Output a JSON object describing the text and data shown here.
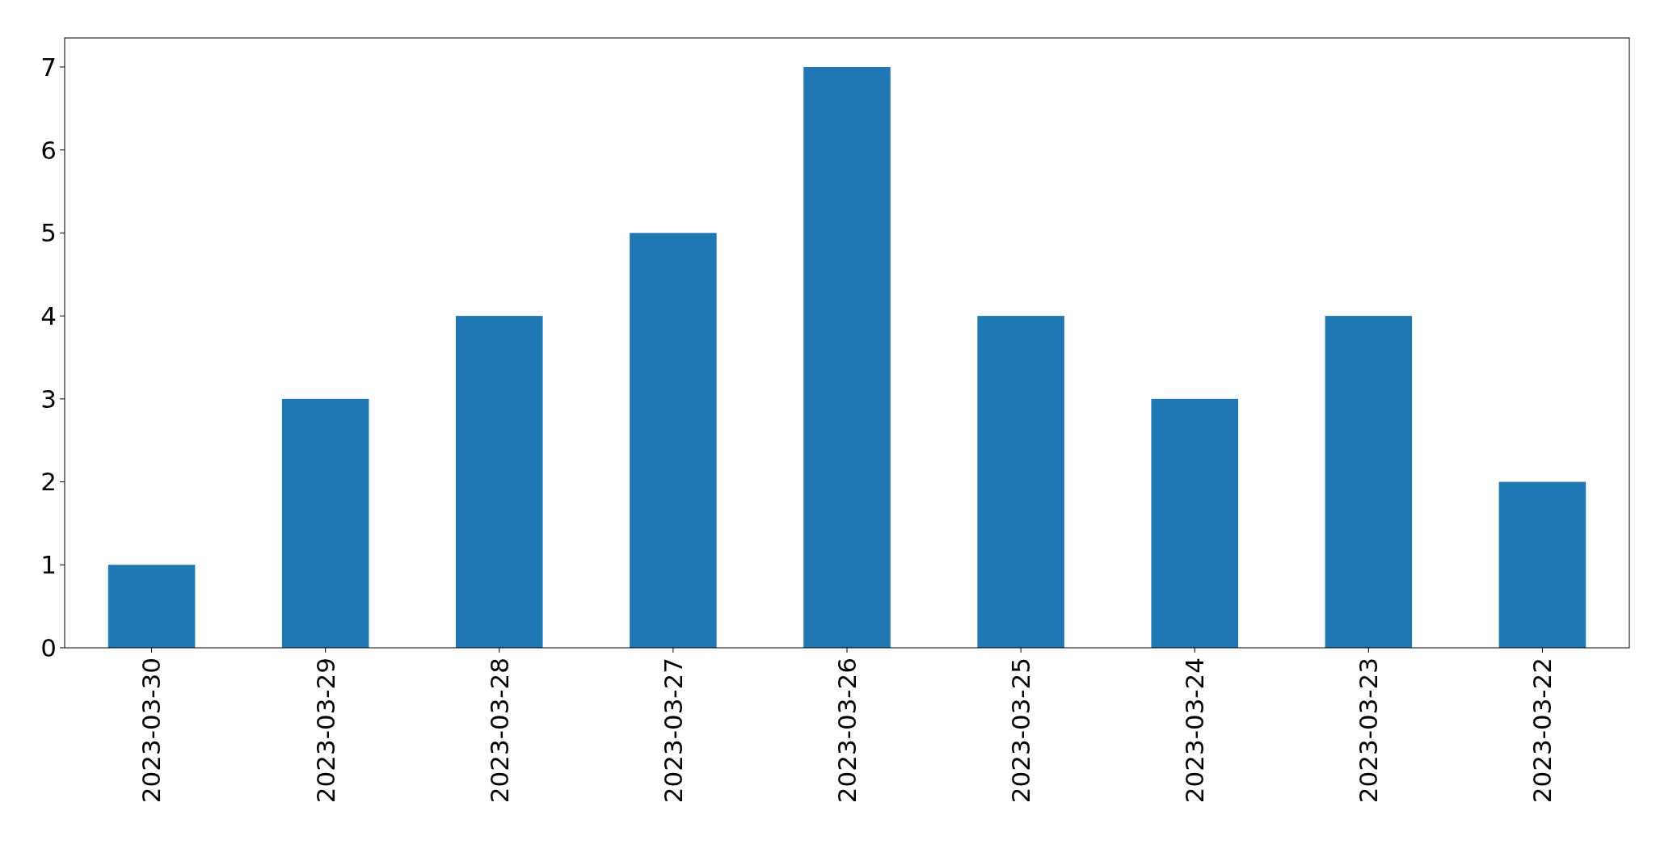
{
  "chart_data": {
    "type": "bar",
    "categories": [
      "2023-03-30",
      "2023-03-29",
      "2023-03-28",
      "2023-03-27",
      "2023-03-26",
      "2023-03-25",
      "2023-03-24",
      "2023-03-23",
      "2023-03-22"
    ],
    "values": [
      1,
      3,
      4,
      5,
      7,
      4,
      3,
      4,
      2
    ],
    "color": "#1f77b4",
    "ylim": [
      0,
      7.35
    ],
    "yticks": [
      0,
      1,
      2,
      3,
      4,
      5,
      6,
      7
    ],
    "grid": false
  }
}
